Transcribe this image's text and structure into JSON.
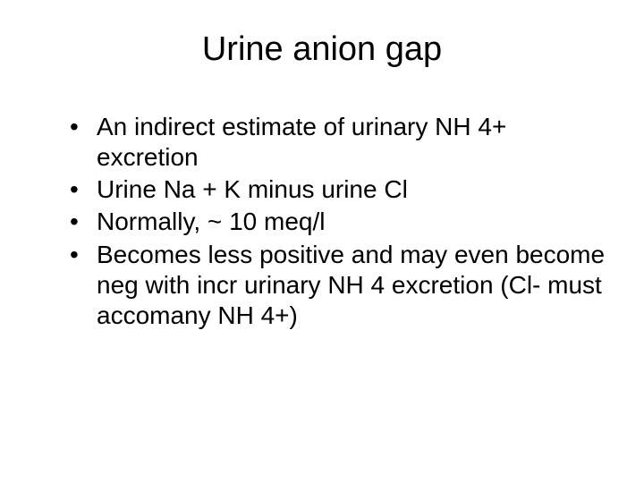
{
  "slide": {
    "title": "Urine anion gap",
    "bullets": [
      "An indirect estimate of urinary NH 4+ excretion",
      "Urine Na + K minus urine Cl",
      "Normally, ~ 10 meq/l",
      "Becomes less positive and may even become neg with incr urinary NH 4 excretion (Cl- must accomany NH 4+)"
    ],
    "styling": {
      "background_color": "#ffffff",
      "text_color": "#000000",
      "title_fontsize": 38,
      "title_fontweight": 400,
      "body_fontsize": 28,
      "font_family": "Arial",
      "bullet_char": "•",
      "slide_width": 720,
      "slide_height": 540,
      "title_align": "center",
      "body_align": "left"
    }
  }
}
